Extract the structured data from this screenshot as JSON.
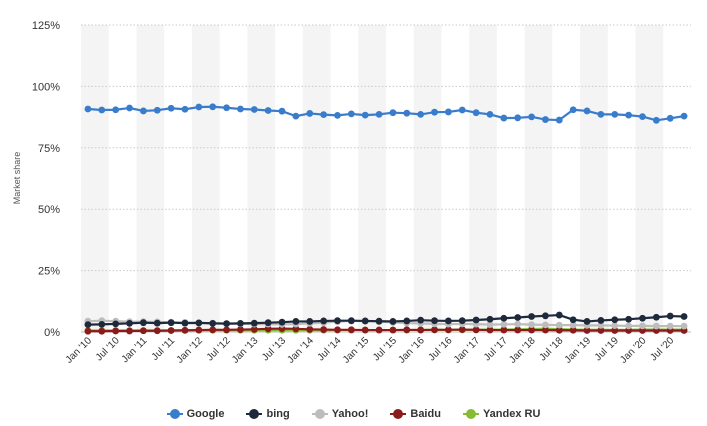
{
  "chart_data": {
    "type": "line",
    "ylabel": "Market share",
    "yticks": [
      "0%",
      "25%",
      "50%",
      "75%",
      "100%",
      "125%"
    ],
    "ylim": [
      0,
      125
    ],
    "x": [
      "Jan '10",
      "Apr '10",
      "Jul '10",
      "Oct '10",
      "Jan '11",
      "Apr '11",
      "Jul '11",
      "Oct '11",
      "Jan '12",
      "Apr '12",
      "Jul '12",
      "Oct '12",
      "Jan '13",
      "Apr '13",
      "Jul '13",
      "Oct '13",
      "Jan '14",
      "Apr '14",
      "Jul '14",
      "Oct '14",
      "Jan '15",
      "Apr '15",
      "Jul '15",
      "Oct '15",
      "Jan '16",
      "Apr '16",
      "Jul '16",
      "Oct '16",
      "Jan '17",
      "Apr '17",
      "Jul '17",
      "Oct '17",
      "Jan '18",
      "Apr '18",
      "Jul '18",
      "Oct '18",
      "Jan '19",
      "Apr '19",
      "Jul '19",
      "Oct '19",
      "Jan '20",
      "Apr '20",
      "Jul '20",
      "Oct '20"
    ],
    "xtick_labels": [
      "Jan '10",
      "Jul '10",
      "Jan '11",
      "Jul '11",
      "Jan '12",
      "Jul '12",
      "Jan '13",
      "Jul '13",
      "Jan '14",
      "Jul '14",
      "Jan '15",
      "Jul '15",
      "Jan '16",
      "Jul '16",
      "Jan '17",
      "Jul '17",
      "Jan '18",
      "Jul '18",
      "Jan '19",
      "Jul '19",
      "Jan '20",
      "Jul '20"
    ],
    "grid": true,
    "legend_position": "bottom",
    "series": [
      {
        "name": "Google",
        "color": "#3a7ccc",
        "values": [
          90.8,
          90.4,
          90.5,
          91.2,
          90.0,
          90.3,
          91.1,
          90.7,
          91.6,
          91.7,
          91.3,
          90.8,
          90.6,
          90.2,
          89.9,
          87.9,
          89.0,
          88.5,
          88.2,
          88.8,
          88.3,
          88.6,
          89.3,
          89.1,
          88.6,
          89.5,
          89.6,
          90.4,
          89.3,
          88.6,
          87.1,
          87.2,
          87.6,
          86.5,
          86.3,
          90.5,
          90.0,
          88.6,
          88.6,
          88.3,
          87.7,
          86.2,
          87.0,
          87.9
        ]
      },
      {
        "name": "bing",
        "color": "#1e2a3b",
        "values": [
          3.0,
          3.1,
          3.3,
          3.5,
          3.8,
          3.6,
          3.8,
          3.6,
          3.7,
          3.5,
          3.4,
          3.5,
          3.6,
          3.8,
          4.0,
          4.3,
          4.3,
          4.5,
          4.6,
          4.6,
          4.5,
          4.4,
          4.3,
          4.5,
          4.8,
          4.6,
          4.5,
          4.6,
          4.9,
          5.2,
          5.6,
          5.9,
          6.3,
          6.6,
          6.9,
          5.0,
          4.3,
          4.7,
          5.0,
          5.2,
          5.6,
          6.0,
          6.5,
          6.3
        ]
      },
      {
        "name": "Yahoo!",
        "color": "#bdbdbd",
        "values": [
          4.4,
          4.6,
          4.4,
          4.2,
          4.2,
          4.1,
          4.0,
          3.9,
          3.7,
          3.6,
          3.4,
          3.3,
          3.2,
          3.2,
          3.1,
          3.2,
          3.5,
          3.8,
          4.2,
          4.5,
          4.4,
          4.2,
          3.9,
          3.6,
          3.5,
          3.3,
          3.2,
          3.3,
          3.2,
          3.0,
          3.1,
          3.2,
          3.0,
          2.9,
          2.8,
          2.8,
          2.7,
          2.7,
          2.6,
          2.5,
          2.5,
          2.4,
          2.4,
          2.4
        ]
      },
      {
        "name": "Baidu",
        "color": "#8b1a1a",
        "values": [
          0.3,
          0.3,
          0.4,
          0.4,
          0.5,
          0.5,
          0.6,
          0.7,
          0.8,
          0.9,
          0.9,
          1.0,
          1.1,
          1.3,
          1.4,
          1.3,
          1.1,
          1.0,
          0.9,
          0.9,
          0.8,
          0.8,
          0.8,
          0.9,
          0.8,
          0.9,
          0.9,
          1.0,
          0.9,
          0.8,
          0.8,
          0.8,
          0.8,
          0.8,
          0.7,
          0.7,
          0.6,
          0.6,
          0.6,
          0.6,
          0.6,
          0.6,
          0.6,
          0.6
        ]
      },
      {
        "name": "Yandex RU",
        "color": "#85bc33",
        "values": [
          0.6,
          0.6,
          0.6,
          0.6,
          0.6,
          0.6,
          0.6,
          0.6,
          0.7,
          0.7,
          0.7,
          0.7,
          0.7,
          0.7,
          0.7,
          0.7,
          0.7,
          0.7,
          0.8,
          0.8,
          0.8,
          0.8,
          0.8,
          0.8,
          0.9,
          0.9,
          0.9,
          0.9,
          0.9,
          1.0,
          1.0,
          1.1,
          1.2,
          1.3,
          1.2,
          1.0,
          0.9,
          0.9,
          0.9,
          0.9,
          1.0,
          1.0,
          1.0,
          1.0
        ]
      }
    ]
  }
}
